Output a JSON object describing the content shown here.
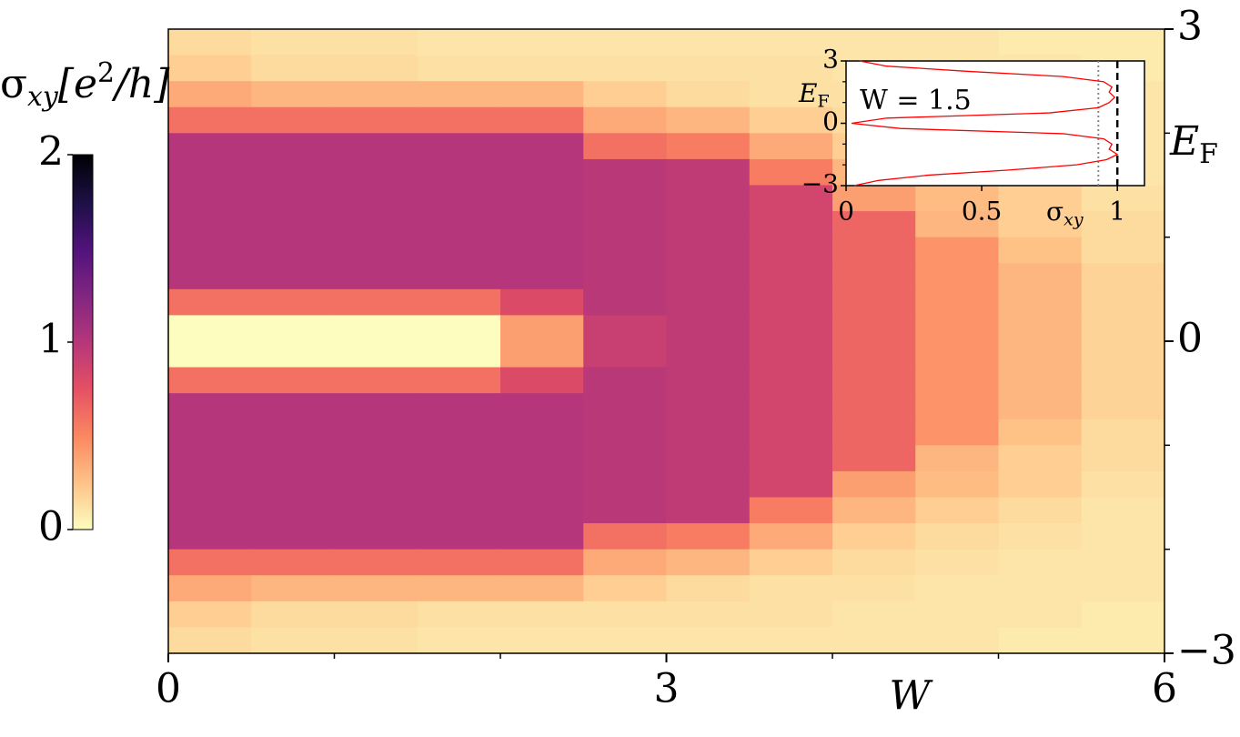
{
  "chart_data": [
    {
      "type": "heatmap",
      "xlabel": "W",
      "ylabel": [
        "E",
        "F"
      ],
      "xlim": [
        0,
        6
      ],
      "ylim": [
        -3,
        3
      ],
      "xticks": [
        0,
        3,
        6
      ],
      "x_minor_ticks": [
        1,
        2,
        4,
        5
      ],
      "yticks": [
        {
          "value": -3,
          "label": "−3"
        },
        0,
        3
      ],
      "y_minor_ticks": [
        -2,
        -1,
        1,
        2
      ],
      "x_bins": [
        0,
        0.5,
        1,
        1.5,
        2,
        2.5,
        3,
        3.5,
        4,
        4.5,
        5,
        5.5,
        6
      ],
      "y_bins": [
        3,
        2.75,
        2.5,
        2.25,
        2,
        1.75,
        1.5,
        1.25,
        1,
        0.75,
        0.5,
        0.25,
        0,
        -0.25,
        -0.5,
        -0.75,
        -1,
        -1.25,
        -1.5,
        -1.75,
        -2,
        -2.25,
        -2.5,
        -2.75,
        -3
      ],
      "values": [
        [
          0.15,
          0.12,
          0.12,
          0.1,
          0.1,
          0.1,
          0.1,
          0.1,
          0.1,
          0.1,
          0.08,
          0.08
        ],
        [
          0.2,
          0.15,
          0.15,
          0.12,
          0.12,
          0.12,
          0.12,
          0.12,
          0.1,
          0.1,
          0.1,
          0.08
        ],
        [
          0.35,
          0.3,
          0.3,
          0.3,
          0.3,
          0.2,
          0.15,
          0.12,
          0.12,
          0.1,
          0.1,
          0.1
        ],
        [
          0.6,
          0.6,
          0.6,
          0.6,
          0.6,
          0.35,
          0.3,
          0.2,
          0.15,
          0.12,
          0.1,
          0.1
        ],
        [
          1,
          1,
          1,
          1,
          1,
          0.6,
          0.55,
          0.35,
          0.2,
          0.15,
          0.12,
          0.1
        ],
        [
          1,
          1,
          1,
          1,
          1,
          0.98,
          0.95,
          0.55,
          0.3,
          0.2,
          0.15,
          0.1
        ],
        [
          1,
          1,
          1,
          1,
          1,
          0.98,
          0.95,
          0.85,
          0.4,
          0.28,
          0.2,
          0.12
        ],
        [
          1,
          1,
          1,
          1,
          1,
          0.98,
          0.95,
          0.85,
          0.65,
          0.3,
          0.2,
          0.15
        ],
        [
          1,
          1,
          1,
          1,
          1,
          0.98,
          0.95,
          0.85,
          0.65,
          0.45,
          0.25,
          0.15
        ],
        [
          1,
          1,
          1,
          1,
          1,
          0.98,
          0.95,
          0.85,
          0.65,
          0.45,
          0.3,
          0.18
        ],
        [
          0.6,
          0.6,
          0.6,
          0.6,
          0.8,
          0.98,
          0.95,
          0.85,
          0.65,
          0.45,
          0.3,
          0.18
        ],
        [
          0,
          0,
          0,
          0,
          0.4,
          0.9,
          0.95,
          0.85,
          0.65,
          0.45,
          0.3,
          0.18
        ],
        [
          0,
          0,
          0,
          0,
          0.4,
          0.9,
          0.95,
          0.85,
          0.65,
          0.45,
          0.3,
          0.18
        ],
        [
          0.6,
          0.6,
          0.6,
          0.6,
          0.8,
          0.98,
          0.95,
          0.85,
          0.65,
          0.45,
          0.3,
          0.18
        ],
        [
          1,
          1,
          1,
          1,
          1,
          0.98,
          0.95,
          0.85,
          0.65,
          0.45,
          0.3,
          0.18
        ],
        [
          1,
          1,
          1,
          1,
          1,
          0.98,
          0.95,
          0.85,
          0.65,
          0.45,
          0.25,
          0.15
        ],
        [
          1,
          1,
          1,
          1,
          1,
          0.98,
          0.95,
          0.85,
          0.65,
          0.3,
          0.2,
          0.15
        ],
        [
          1,
          1,
          1,
          1,
          1,
          0.98,
          0.95,
          0.85,
          0.4,
          0.28,
          0.2,
          0.12
        ],
        [
          1,
          1,
          1,
          1,
          1,
          0.98,
          0.95,
          0.55,
          0.3,
          0.2,
          0.15,
          0.1
        ],
        [
          1,
          1,
          1,
          1,
          1,
          0.6,
          0.55,
          0.35,
          0.2,
          0.15,
          0.12,
          0.1
        ],
        [
          0.6,
          0.6,
          0.6,
          0.6,
          0.6,
          0.35,
          0.3,
          0.2,
          0.15,
          0.12,
          0.1,
          0.1
        ],
        [
          0.35,
          0.3,
          0.3,
          0.3,
          0.3,
          0.2,
          0.15,
          0.12,
          0.12,
          0.1,
          0.1,
          0.1
        ],
        [
          0.2,
          0.15,
          0.15,
          0.12,
          0.12,
          0.12,
          0.12,
          0.12,
          0.1,
          0.1,
          0.1,
          0.08
        ],
        [
          0.15,
          0.12,
          0.12,
          0.1,
          0.1,
          0.1,
          0.1,
          0.1,
          0.1,
          0.1,
          0.08,
          0.08
        ]
      ],
      "colormap": [
        "#fcfdbf",
        "#fec287",
        "#fb8761",
        "#e55064",
        "#b5367a",
        "#812581",
        "#4f127b",
        "#1c1044",
        "#000004"
      ],
      "colorbar": {
        "label": [
          "σ",
          "xy",
          "[e",
          "2",
          "/h]"
        ],
        "lim": [
          0,
          2
        ],
        "ticks": [
          0,
          1,
          2
        ]
      }
    },
    {
      "type": "line",
      "annotation": "W = 1.5",
      "xlabel": [
        "σ",
        "xy"
      ],
      "ylabel": [
        "E",
        "F"
      ],
      "xlim": [
        0,
        1.1
      ],
      "ylim": [
        -3,
        3
      ],
      "xticks": [
        0,
        0.5,
        1
      ],
      "yticks": [
        {
          "value": -3,
          "label": "−3"
        },
        0,
        3
      ],
      "y_minor_ticks": [
        -2,
        -1,
        1,
        2
      ],
      "color": "#ff0000",
      "y": [
        3,
        2.75,
        2.5,
        2.25,
        2,
        1.75,
        1.5,
        1.25,
        1,
        0.75,
        0.5,
        0.25,
        0,
        -0.25,
        -0.5,
        -0.75,
        -1,
        -1.25,
        -1.5,
        -1.75,
        -2,
        -2.25,
        -2.5,
        -2.75,
        -3
      ],
      "values": [
        0.05,
        0.15,
        0.45,
        0.8,
        0.95,
        0.98,
        0.97,
        0.99,
        0.97,
        0.93,
        0.75,
        0.15,
        0.02,
        0.2,
        0.8,
        0.95,
        0.98,
        0.97,
        1.0,
        0.96,
        0.85,
        0.6,
        0.3,
        0.12,
        0.03
      ],
      "reference_lines": [
        {
          "x": 0.93,
          "color": "#888888",
          "style": "dotted"
        },
        {
          "x": 1,
          "color": "#000000",
          "style": "dashed"
        }
      ]
    }
  ]
}
